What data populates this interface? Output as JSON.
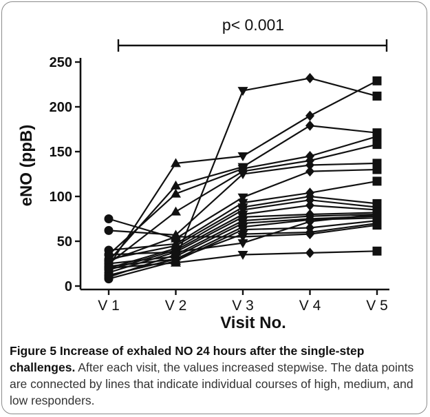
{
  "chart_data": {
    "type": "line",
    "xlabel": "Visit No.",
    "ylabel": "eNO (ppB)",
    "categories": [
      "V 1",
      "V 2",
      "V 3",
      "V 4",
      "V 5"
    ],
    "ylim": [
      0,
      250
    ],
    "yticks": [
      0,
      50,
      100,
      150,
      200,
      250
    ],
    "grid": false,
    "markers": [
      "circle",
      "triangle-up",
      "triangle-down",
      "diamond",
      "square"
    ],
    "annotation": "p< 0.001",
    "color": "#111111",
    "series": [
      {
        "values": [
          12,
          30,
          218,
          232,
          212
        ]
      },
      {
        "values": [
          22,
          137,
          145,
          190,
          229
        ]
      },
      {
        "values": [
          28,
          112,
          133,
          179,
          171
        ]
      },
      {
        "values": [
          35,
          103,
          131,
          145,
          167
        ]
      },
      {
        "values": [
          25,
          83,
          128,
          140,
          158
        ]
      },
      {
        "values": [
          62,
          57,
          125,
          135,
          137
        ]
      },
      {
        "values": [
          75,
          53,
          99,
          128,
          130
        ]
      },
      {
        "values": [
          40,
          47,
          93,
          104,
          117
        ]
      },
      {
        "values": [
          30,
          45,
          88,
          100,
          92
        ]
      },
      {
        "values": [
          20,
          42,
          85,
          96,
          88
        ]
      },
      {
        "values": [
          18,
          40,
          80,
          90,
          85
        ]
      },
      {
        "values": [
          15,
          38,
          77,
          80,
          82
        ]
      },
      {
        "values": [
          10,
          35,
          73,
          78,
          80
        ]
      },
      {
        "values": [
          25,
          33,
          70,
          75,
          78
        ]
      },
      {
        "values": [
          22,
          30,
          66,
          74,
          76
        ]
      },
      {
        "values": [
          8,
          28,
          63,
          65,
          73
        ]
      },
      {
        "values": [
          12,
          30,
          58,
          60,
          70
        ]
      },
      {
        "values": [
          28,
          55,
          55,
          58,
          68
        ]
      },
      {
        "values": [
          35,
          38,
          48,
          72,
          80
        ]
      },
      {
        "values": [
          20,
          26,
          35,
          37,
          39
        ]
      }
    ]
  },
  "caption": {
    "title": "Figure 5 Increase of exhaled NO 24 hours after the single-step challenges.",
    "text": " After each visit, the values increased stepwise. The data points are connected by lines that indicate individual courses of high, medium, and low responders."
  }
}
